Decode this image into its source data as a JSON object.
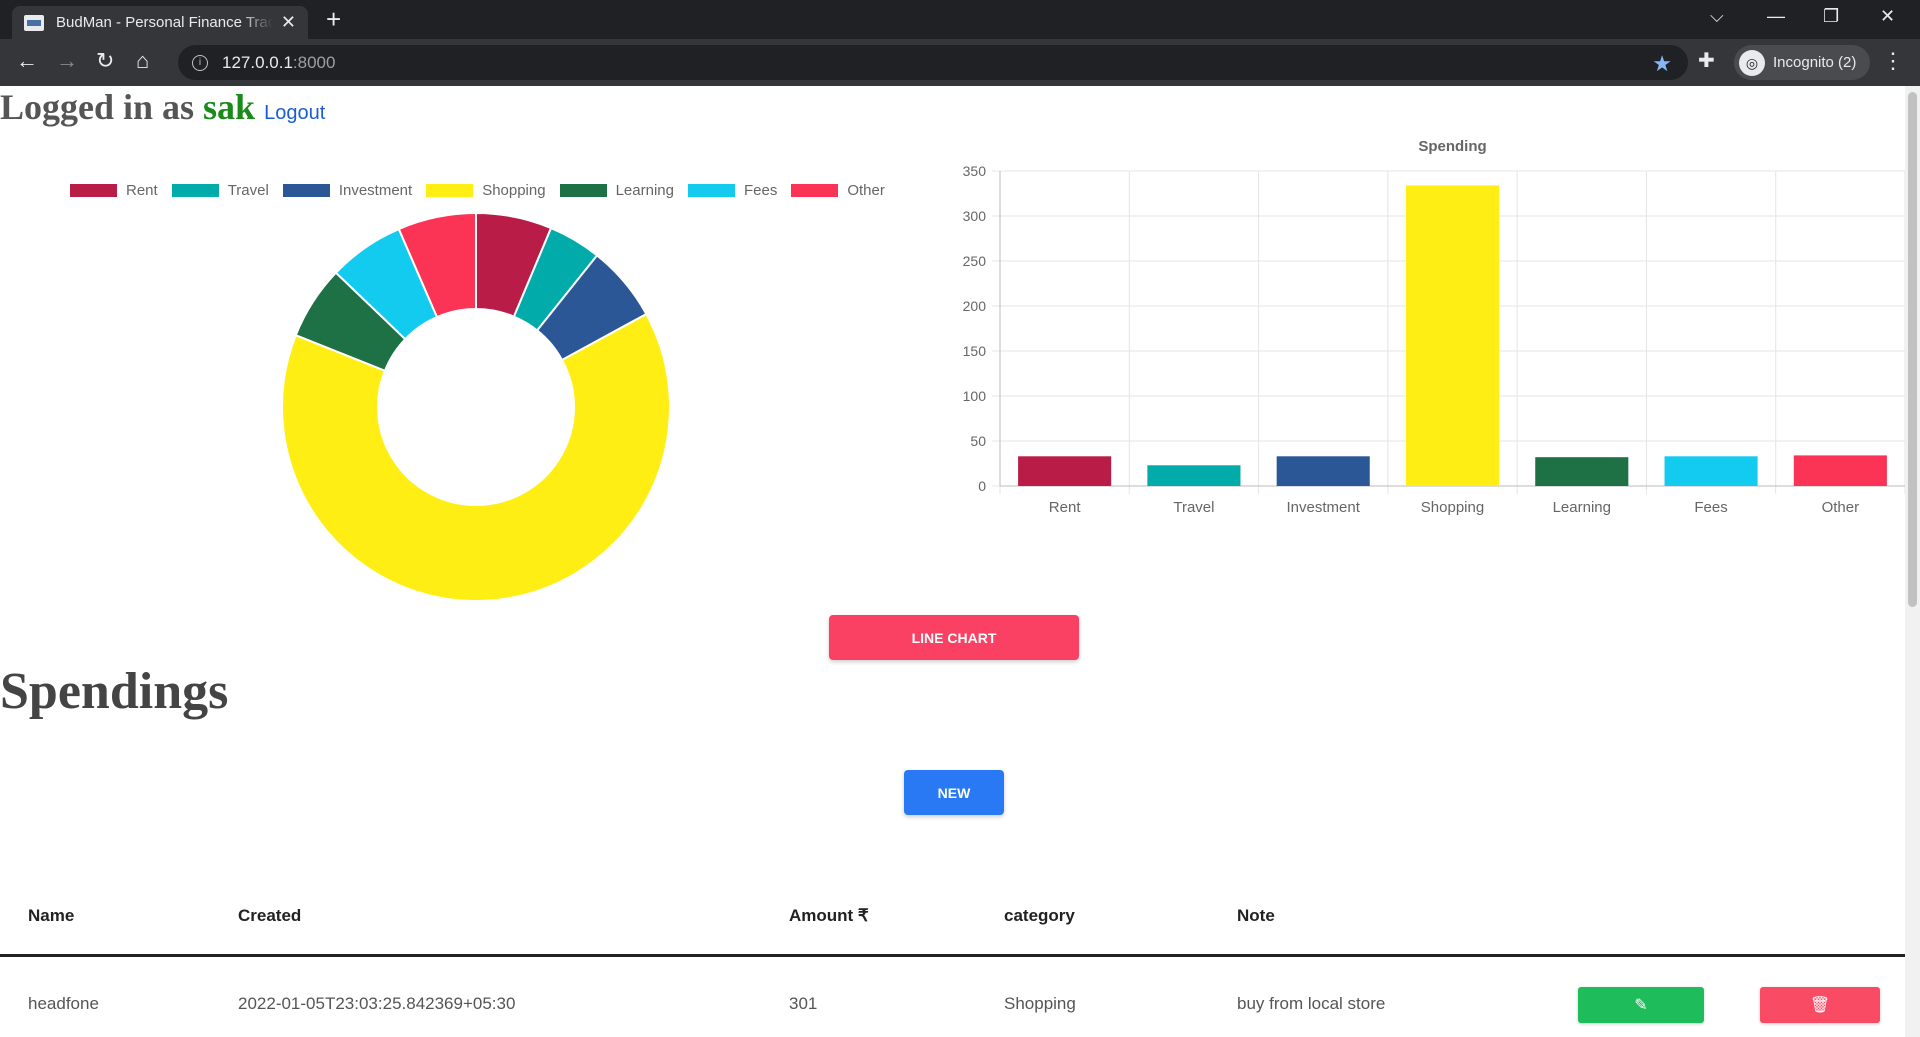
{
  "browser": {
    "tab_title": "BudMan - Personal Finance Tracker",
    "url_host": "127.0.0.1",
    "url_port": ":8000",
    "profile_label": "Incognito (2)",
    "icons": [
      "back-icon",
      "forward-icon",
      "reload-icon",
      "home-icon",
      "info-icon",
      "star-icon",
      "extensions-icon",
      "incognito-icon",
      "menu-icon",
      "minimize-icon",
      "maximize-icon",
      "close-icon"
    ]
  },
  "header": {
    "prefix": "Logged in as",
    "username": "sak",
    "logout_label": "Logout"
  },
  "colors": {
    "Rent": "#b91d47",
    "Travel": "#00aba9",
    "Investment": "#2b5797",
    "Shopping": "#ffee13",
    "Learning": "#1e7145",
    "Fees": "#13cbef",
    "Other": "#fb3355"
  },
  "chart_data": [
    {
      "type": "pie",
      "categories": [
        "Rent",
        "Travel",
        "Investment",
        "Shopping",
        "Learning",
        "Fees",
        "Other"
      ],
      "values": [
        33,
        23,
        33,
        334,
        32,
        33,
        34
      ],
      "legend": "top"
    },
    {
      "type": "bar",
      "title": "Spending",
      "categories": [
        "Rent",
        "Travel",
        "Investment",
        "Shopping",
        "Learning",
        "Fees",
        "Other"
      ],
      "values": [
        33,
        23,
        33,
        334,
        32,
        33,
        34
      ],
      "ylim": [
        0,
        350
      ],
      "yticks": [
        0,
        50,
        100,
        150,
        200,
        250,
        300,
        350
      ],
      "grid": true
    }
  ],
  "actions": {
    "line_chart_label": "LINE CHART",
    "new_label": "NEW"
  },
  "section_title": "Spendings",
  "table": {
    "headers": [
      "Name",
      "Created",
      "Amount ₹",
      "category",
      "Note"
    ],
    "rows": [
      {
        "name": "headfone",
        "created": "2022-01-05T23:03:25.842369+05:30",
        "amount": "301",
        "category": "Shopping",
        "note": "buy from local store"
      }
    ]
  }
}
